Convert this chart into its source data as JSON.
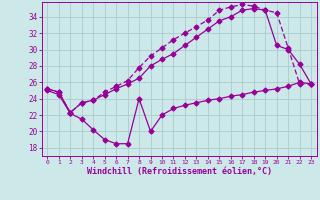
{
  "bg_color": "#cce8e8",
  "grid_color": "#aacccc",
  "line_color": "#990099",
  "xlabel": "Windchill (Refroidissement éolien,°C)",
  "x_ticks": [
    0,
    1,
    2,
    3,
    4,
    5,
    6,
    7,
    8,
    9,
    10,
    11,
    12,
    13,
    14,
    15,
    16,
    17,
    18,
    19,
    20,
    21,
    22,
    23
  ],
  "y_ticks": [
    18,
    20,
    22,
    24,
    26,
    28,
    30,
    32,
    34
  ],
  "xlim": [
    -0.5,
    23.5
  ],
  "ylim": [
    17.0,
    35.8
  ],
  "series1_x": [
    0,
    1,
    2,
    3,
    4,
    5,
    6,
    7,
    8,
    9,
    10,
    11,
    12,
    13,
    14,
    15,
    16,
    17,
    18,
    19,
    20,
    21,
    22,
    23
  ],
  "series1_y": [
    25.0,
    24.5,
    22.2,
    21.5,
    20.2,
    19.0,
    18.5,
    18.5,
    24.0,
    20.0,
    22.0,
    22.8,
    23.2,
    23.5,
    23.8,
    24.0,
    24.3,
    24.5,
    24.8,
    25.0,
    25.2,
    25.5,
    26.0,
    25.8
  ],
  "series2_x": [
    0,
    1,
    2,
    3,
    4,
    5,
    6,
    7,
    8,
    9,
    10,
    11,
    12,
    13,
    14,
    15,
    16,
    17,
    18,
    19,
    20,
    21,
    22,
    23
  ],
  "series2_y": [
    25.2,
    24.8,
    22.3,
    23.5,
    23.8,
    24.8,
    25.5,
    26.2,
    27.8,
    29.2,
    30.2,
    31.2,
    32.0,
    32.8,
    33.6,
    34.8,
    35.2,
    35.5,
    35.3,
    34.8,
    34.5,
    30.2,
    25.8,
    25.8
  ],
  "series3_x": [
    0,
    1,
    2,
    3,
    4,
    5,
    6,
    7,
    8,
    9,
    10,
    11,
    12,
    13,
    14,
    15,
    16,
    17,
    18,
    19,
    20,
    21,
    22,
    23
  ],
  "series3_y": [
    25.2,
    24.8,
    22.3,
    23.5,
    23.8,
    24.5,
    25.2,
    25.8,
    26.5,
    28.0,
    28.8,
    29.5,
    30.5,
    31.5,
    32.5,
    33.5,
    34.0,
    34.8,
    35.0,
    34.8,
    30.5,
    30.0,
    28.2,
    25.8
  ]
}
